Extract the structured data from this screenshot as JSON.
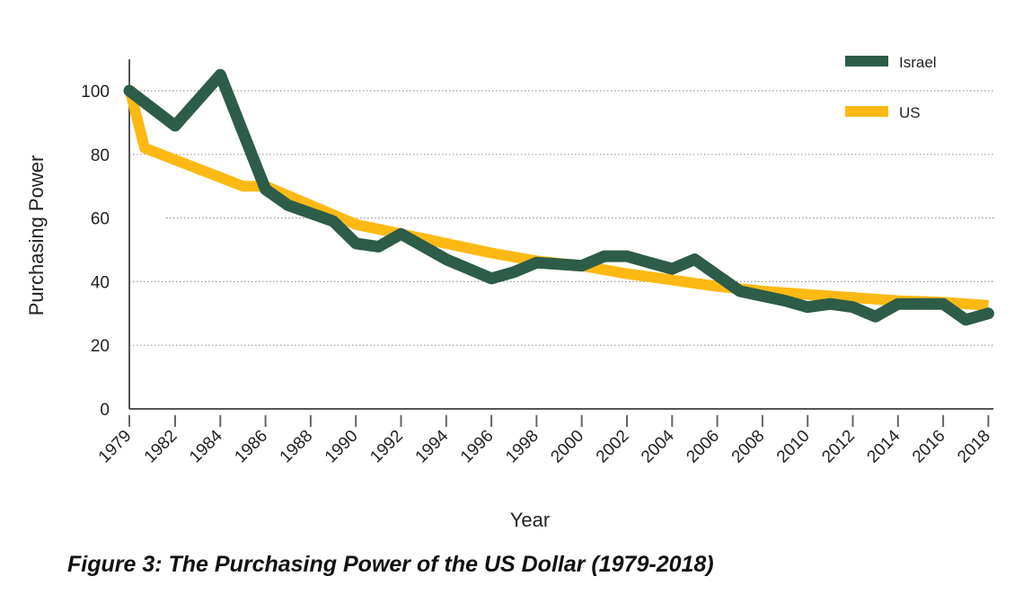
{
  "chart_data": {
    "type": "line",
    "title": "",
    "xlabel": "Year",
    "ylabel": "Purchasing Power",
    "ylim": [
      0,
      100
    ],
    "yticks": [
      0,
      20,
      40,
      60,
      80,
      100
    ],
    "xticks": [
      "1979",
      "1982",
      "1984",
      "1986",
      "1988",
      "1990",
      "1992",
      "1994",
      "1996",
      "1998",
      "2000",
      "2002",
      "2004",
      "2006",
      "2008",
      "2010",
      "2012",
      "2014",
      "2016",
      "2018"
    ],
    "grid": "horizontal dotted",
    "legend_placement": "top-right",
    "series": [
      {
        "name": "Israel",
        "color": "#2d5c48",
        "x": [
          1979,
          1982,
          1984,
          1986,
          1987,
          1989,
          1990,
          1991,
          1992,
          1994,
          1996,
          1997,
          1998,
          2000,
          2001,
          2002,
          2003,
          2004,
          2005,
          2007,
          2009,
          2010,
          2011,
          2012,
          2013,
          2014,
          2016,
          2017,
          2018
        ],
        "values": [
          100,
          89,
          105,
          69,
          64,
          59,
          52,
          51,
          55,
          47,
          41,
          43,
          46,
          45,
          48,
          48,
          46,
          44,
          47,
          37,
          34,
          32,
          33,
          32,
          29,
          33,
          33,
          28,
          30
        ]
      },
      {
        "name": "US",
        "color": "#fdb913",
        "x": [
          1979,
          1980,
          1985,
          1986,
          1988,
          1990,
          1992,
          1994,
          1996,
          1998,
          2000,
          2002,
          2004,
          2006,
          2008,
          2010,
          2012,
          2014,
          2016,
          2018
        ],
        "values": [
          101,
          82,
          70,
          70,
          64,
          58,
          55,
          52,
          49,
          46.5,
          45,
          42.5,
          40.5,
          38.5,
          37,
          36,
          35,
          34,
          33.5,
          32.5
        ]
      }
    ]
  },
  "caption": "Figure 3: The Purchasing Power of the US Dollar (1979-2018)"
}
